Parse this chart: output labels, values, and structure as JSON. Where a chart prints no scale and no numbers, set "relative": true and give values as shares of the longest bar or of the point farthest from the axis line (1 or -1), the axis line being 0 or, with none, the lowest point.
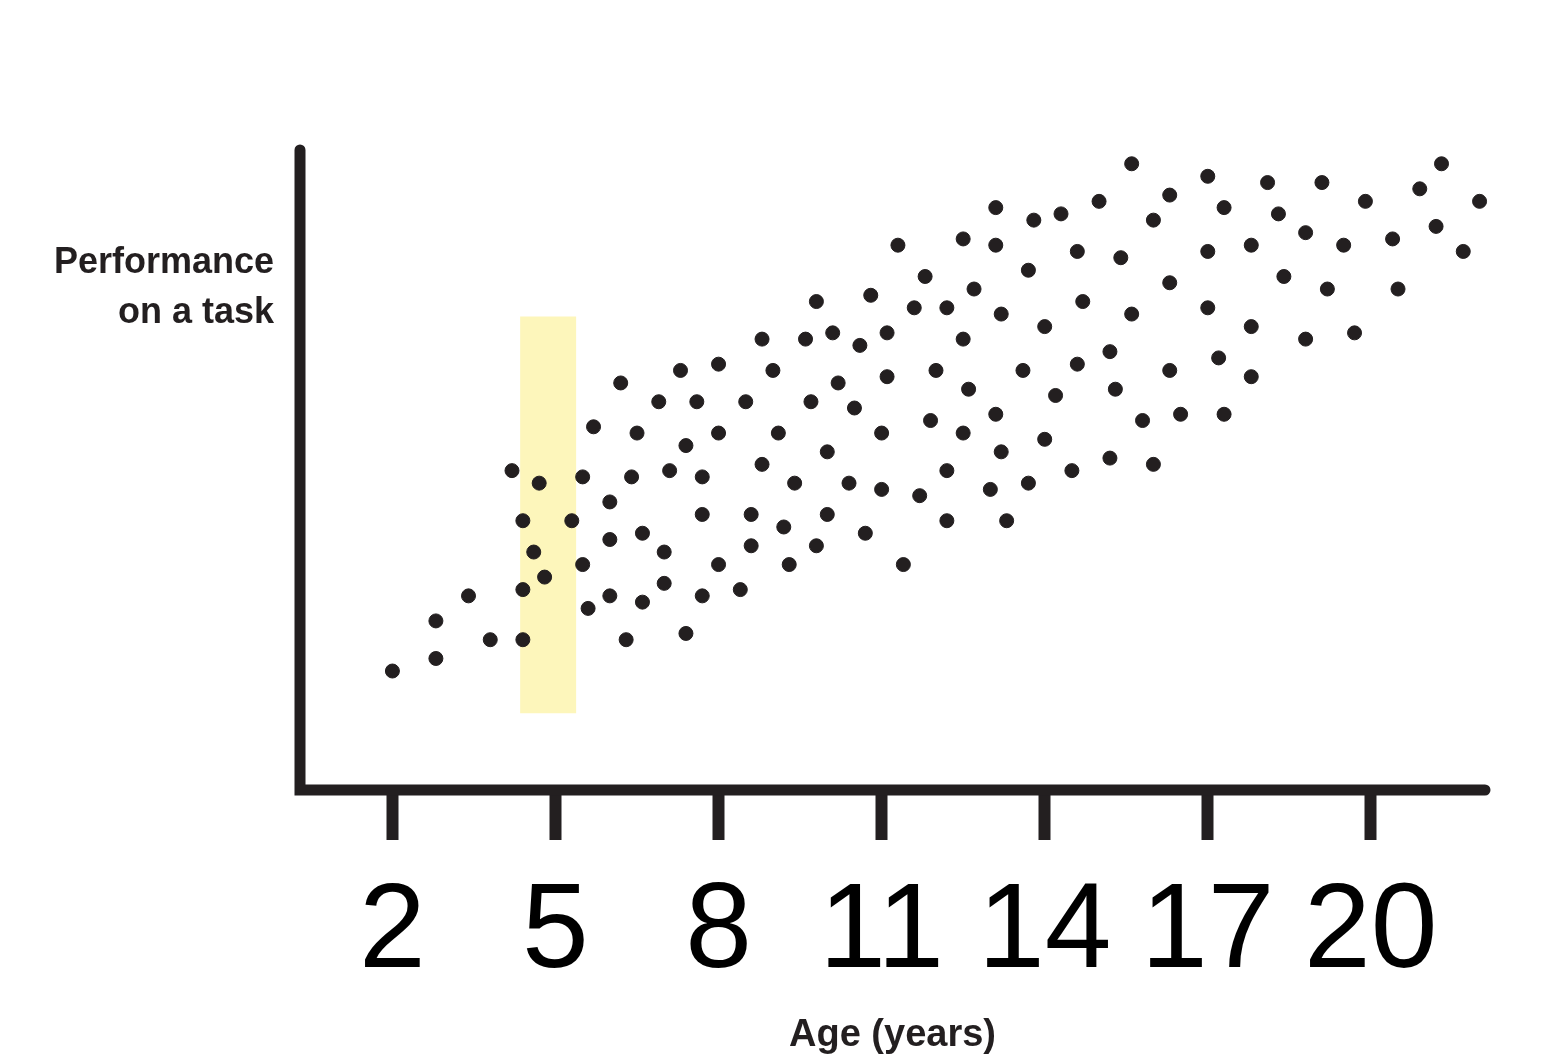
{
  "chart_data": {
    "type": "scatter",
    "relative": true,
    "xlabel": "Age (years)",
    "ylabel": "Performance on a task",
    "xlim": [
      0.3,
      22.1
    ],
    "xticks": [
      2,
      5,
      8,
      11,
      14,
      17,
      20
    ],
    "grid": false,
    "legend": false,
    "marker": "circle",
    "color": "#231f20",
    "bands": [
      {
        "axis": "x",
        "from": 4.35,
        "to": 5.38,
        "color": "#fdf6bb"
      }
    ],
    "x": [
      2.0,
      2.8,
      2.8,
      3.4,
      3.8,
      4.2,
      4.4,
      4.4,
      4.4,
      4.6,
      4.7,
      4.8,
      5.3,
      5.5,
      5.5,
      5.6,
      5.7,
      6.0,
      6.0,
      6.0,
      6.2,
      6.3,
      6.4,
      6.5,
      6.6,
      6.6,
      6.9,
      7.0,
      7.0,
      7.1,
      7.3,
      7.4,
      7.4,
      7.6,
      7.7,
      7.7,
      7.7,
      8.0,
      8.0,
      8.0,
      8.4,
      8.5,
      8.6,
      8.6,
      8.8,
      8.8,
      9.0,
      9.1,
      9.2,
      9.3,
      9.4,
      9.6,
      9.7,
      9.8,
      9.8,
      10.0,
      10.0,
      10.1,
      10.2,
      10.4,
      10.5,
      10.6,
      10.7,
      10.8,
      11.0,
      11.0,
      11.1,
      11.1,
      11.3,
      11.4,
      11.6,
      11.7,
      11.8,
      11.9,
      12.0,
      12.2,
      12.2,
      12.2,
      12.5,
      12.5,
      12.5,
      12.6,
      12.7,
      13.0,
      13.1,
      13.1,
      13.1,
      13.2,
      13.2,
      13.3,
      13.6,
      13.7,
      13.7,
      13.8,
      14.0,
      14.0,
      14.2,
      14.3,
      14.5,
      14.6,
      14.6,
      14.7,
      15.0,
      15.2,
      15.2,
      15.3,
      15.4,
      15.6,
      15.6,
      15.8,
      16.0,
      16.0,
      16.3,
      16.3,
      16.3,
      16.5,
      17.0,
      17.0,
      17.0,
      17.2,
      17.3,
      17.3,
      17.8,
      17.8,
      17.8,
      18.1,
      18.3,
      18.4,
      18.8,
      18.8,
      19.1,
      19.2,
      19.5,
      19.7,
      19.9,
      20.4,
      20.5,
      20.9,
      21.2,
      21.3,
      21.7,
      22.0
    ],
    "values": [
      0.19,
      0.27,
      0.21,
      0.31,
      0.24,
      0.51,
      0.32,
      0.24,
      0.43,
      0.38,
      0.49,
      0.34,
      0.43,
      0.5,
      0.36,
      0.29,
      0.58,
      0.46,
      0.4,
      0.31,
      0.65,
      0.24,
      0.5,
      0.57,
      0.3,
      0.41,
      0.62,
      0.38,
      0.33,
      0.51,
      0.67,
      0.55,
      0.25,
      0.62,
      0.5,
      0.44,
      0.31,
      0.68,
      0.57,
      0.36,
      0.32,
      0.62,
      0.44,
      0.39,
      0.72,
      0.52,
      0.67,
      0.57,
      0.42,
      0.36,
      0.49,
      0.72,
      0.62,
      0.78,
      0.39,
      0.54,
      0.44,
      0.73,
      0.65,
      0.49,
      0.61,
      0.71,
      0.41,
      0.79,
      0.57,
      0.48,
      0.66,
      0.73,
      0.87,
      0.36,
      0.77,
      0.47,
      0.82,
      0.59,
      0.67,
      0.77,
      0.43,
      0.51,
      0.57,
      0.72,
      0.88,
      0.64,
      0.8,
      0.48,
      0.93,
      0.87,
      0.6,
      0.54,
      0.76,
      0.43,
      0.67,
      0.49,
      0.83,
      0.91,
      0.74,
      0.56,
      0.63,
      0.92,
      0.51,
      0.68,
      0.86,
      0.78,
      0.94,
      0.7,
      0.53,
      0.64,
      0.85,
      0.76,
      1.0,
      0.59,
      0.52,
      0.91,
      0.95,
      0.67,
      0.81,
      0.6,
      0.98,
      0.86,
      0.77,
      0.69,
      0.93,
      0.6,
      0.87,
      0.74,
      0.66,
      0.97,
      0.92,
      0.82,
      0.89,
      0.72,
      0.97,
      0.8,
      0.87,
      0.73,
      0.94,
      0.88,
      0.8,
      0.96,
      0.9,
      1.0,
      0.86,
      0.94
    ]
  }
}
